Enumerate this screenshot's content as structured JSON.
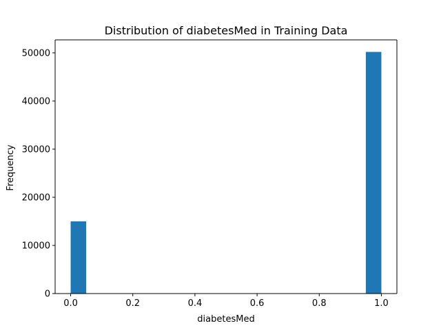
{
  "chart_data": {
    "type": "bar",
    "title": "Distribution of diabetesMed in Training Data",
    "xlabel": "diabetesMed",
    "ylabel": "Frequency",
    "xlim": [
      -0.05,
      1.05
    ],
    "ylim": [
      0,
      52700
    ],
    "xticks": [
      0.0,
      0.2,
      0.4,
      0.6,
      0.8,
      1.0
    ],
    "xtick_labels": [
      "0.0",
      "0.2",
      "0.4",
      "0.6",
      "0.8",
      "1.0"
    ],
    "yticks": [
      0,
      10000,
      20000,
      30000,
      40000,
      50000
    ],
    "ytick_labels": [
      "0",
      "10000",
      "20000",
      "30000",
      "40000",
      "50000"
    ],
    "grid": false,
    "bins": [
      {
        "x0": 0.0,
        "x1": 0.05,
        "count": 15000
      },
      {
        "x0": 0.95,
        "x1": 1.0,
        "count": 50200
      }
    ],
    "bar_color": "#1f77b4"
  }
}
